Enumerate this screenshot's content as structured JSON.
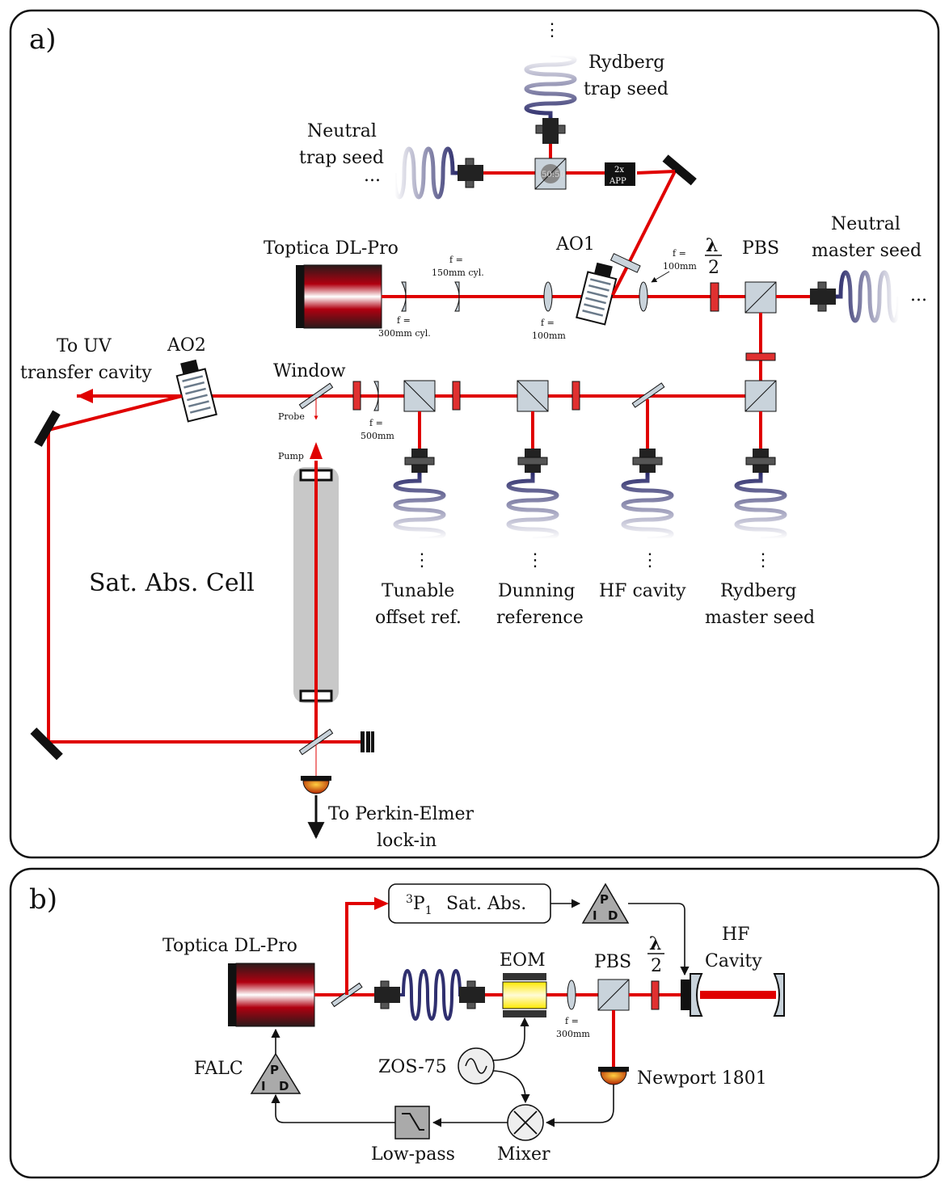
{
  "panel_a": {
    "label": "a)",
    "laser": "Toptica DL-Pro",
    "lens_150": [
      "f =",
      "150mm cyl."
    ],
    "lens_300": [
      "f =",
      "300mm cyl."
    ],
    "lens_100a": [
      "f =",
      "100mm"
    ],
    "lens_100b": [
      "f =",
      "100mm"
    ],
    "lens_500": [
      "f =",
      "500mm"
    ],
    "ao1": "AO1",
    "ao2": "AO2",
    "lambda_top": "λ",
    "lambda_bot": "2",
    "pbs": "PBS",
    "neutral_master": [
      "Neutral",
      "master seed"
    ],
    "neutral_trap": [
      "Neutral",
      "trap seed"
    ],
    "rydberg_trap": [
      "Rydberg",
      "trap seed"
    ],
    "app": [
      "2x",
      "APP"
    ],
    "splitter": "50:50",
    "window": "Window",
    "to_uv": [
      "To UV",
      "transfer cavity"
    ],
    "probe": "Probe",
    "pump": "Pump",
    "sat_abs_cell": "Sat. Abs. Cell",
    "outputs": [
      [
        "Tunable",
        "offset ref."
      ],
      [
        "Dunning",
        "reference"
      ],
      [
        "HF cavity"
      ],
      [
        "Rydberg",
        "master seed"
      ]
    ],
    "to_perkin": [
      "To Perkin-Elmer",
      "lock-in"
    ],
    "ellipsis_v": "⋮",
    "ellipsis_h": "..."
  },
  "panel_b": {
    "label": "b)",
    "laser": "Toptica DL-Pro",
    "sat_abs": "Sat. Abs.",
    "sat_abs_state": "3P1",
    "eom": "EOM",
    "pbs": "PBS",
    "lambda_top": "λ",
    "lambda_bot": "2",
    "hf_cavity": [
      "HF",
      "Cavity"
    ],
    "lens": [
      "f =",
      "300mm"
    ],
    "zos": "ZOS-75",
    "newport": "Newport 1801",
    "falc": "FALC",
    "mixer": "Mixer",
    "lowpass": "Low-pass",
    "pid": [
      "P",
      "I",
      "D"
    ]
  },
  "colors": {
    "beam": "#e00000",
    "fiber": "#2f2f6f",
    "optic": "#c9d3db"
  }
}
